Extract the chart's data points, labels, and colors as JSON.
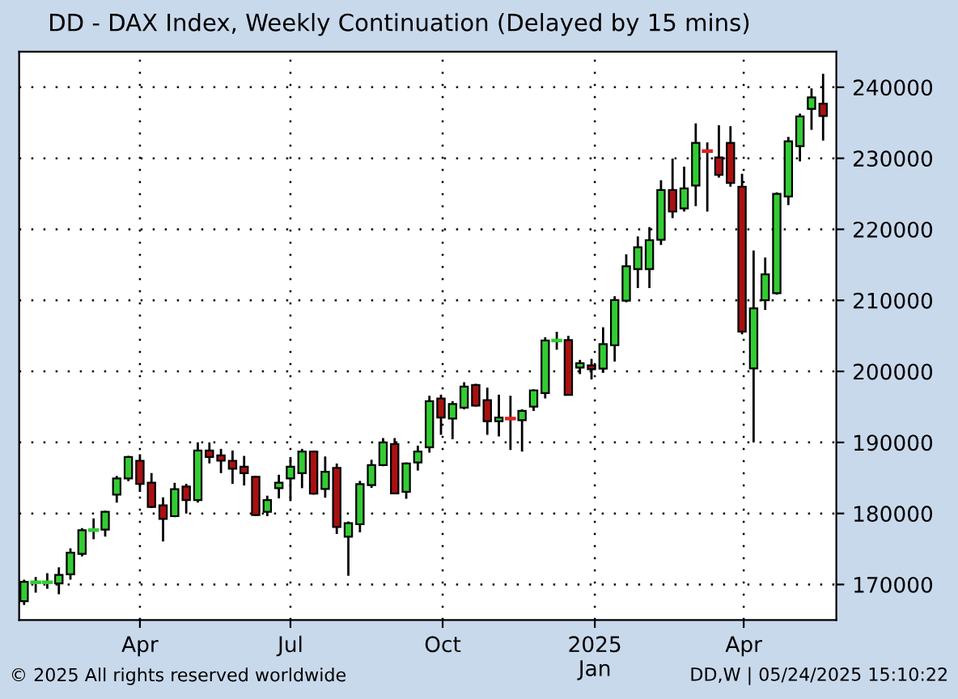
{
  "chart_data": {
    "type": "candlestick",
    "title": "DD - DAX Index, Weekly Continuation (Delayed by 15 mins)",
    "x": [
      "2024-01-22",
      "2024-01-29",
      "2024-02-05",
      "2024-02-12",
      "2024-02-19",
      "2024-02-26",
      "2024-03-04",
      "2024-03-11",
      "2024-03-18",
      "2024-03-25",
      "2024-04-01",
      "2024-04-08",
      "2024-04-15",
      "2024-04-22",
      "2024-04-29",
      "2024-05-06",
      "2024-05-13",
      "2024-05-20",
      "2024-05-27",
      "2024-06-03",
      "2024-06-10",
      "2024-06-17",
      "2024-06-24",
      "2024-07-01",
      "2024-07-08",
      "2024-07-15",
      "2024-07-22",
      "2024-07-29",
      "2024-08-05",
      "2024-08-12",
      "2024-08-19",
      "2024-08-26",
      "2024-09-02",
      "2024-09-09",
      "2024-09-16",
      "2024-09-23",
      "2024-09-30",
      "2024-10-07",
      "2024-10-14",
      "2024-10-21",
      "2024-10-28",
      "2024-11-04",
      "2024-11-11",
      "2024-11-18",
      "2024-11-25",
      "2024-12-02",
      "2024-12-09",
      "2024-12-16",
      "2024-12-23",
      "2024-12-30",
      "2025-01-06",
      "2025-01-13",
      "2025-01-20",
      "2025-01-27",
      "2025-02-03",
      "2025-02-10",
      "2025-02-17",
      "2025-02-24",
      "2025-03-03",
      "2025-03-10",
      "2025-03-17",
      "2025-03-24",
      "2025-03-31",
      "2025-04-07",
      "2025-04-14",
      "2025-04-21",
      "2025-04-28",
      "2025-05-05",
      "2025-05-12",
      "2025-05-19"
    ],
    "ohlc": [
      [
        167650,
        170680,
        167120,
        170380
      ],
      [
        170300,
        171060,
        168860,
        170300
      ],
      [
        170300,
        171590,
        169400,
        170300
      ],
      [
        170150,
        172420,
        168640,
        171360
      ],
      [
        171440,
        175080,
        170680,
        174470
      ],
      [
        174320,
        177950,
        173940,
        177650
      ],
      [
        177650,
        179320,
        176360,
        177650
      ],
      [
        177730,
        180380,
        176740,
        180230
      ],
      [
        182650,
        185300,
        181520,
        184920
      ],
      [
        184920,
        188100,
        184550,
        187950
      ],
      [
        187420,
        188330,
        183030,
        184170
      ],
      [
        184320,
        185680,
        180760,
        180910
      ],
      [
        181140,
        182270,
        176060,
        179240
      ],
      [
        179620,
        184320,
        179470,
        183410
      ],
      [
        183790,
        184170,
        180000,
        181890
      ],
      [
        181890,
        190000,
        181520,
        188860
      ],
      [
        188860,
        190000,
        187050,
        187950
      ],
      [
        188180,
        189090,
        185680,
        187420
      ],
      [
        187420,
        188860,
        184170,
        186290
      ],
      [
        186590,
        188100,
        183940,
        185680
      ],
      [
        185150,
        185300,
        179620,
        179770
      ],
      [
        180230,
        182500,
        179620,
        181890
      ],
      [
        183560,
        185450,
        182120,
        184320
      ],
      [
        184920,
        187950,
        181740,
        186590
      ],
      [
        185680,
        189090,
        183560,
        188710
      ],
      [
        188710,
        188860,
        182650,
        182800
      ],
      [
        183440,
        188020,
        182220,
        185880
      ],
      [
        186420,
        187030,
        177110,
        178100
      ],
      [
        176730,
        178870,
        171230,
        178640
      ],
      [
        178480,
        184590,
        177340,
        184130
      ],
      [
        183980,
        187560,
        183600,
        186800
      ],
      [
        186800,
        190610,
        186650,
        190000
      ],
      [
        189780,
        190610,
        182830,
        182830
      ],
      [
        183060,
        187180,
        182070,
        187030
      ],
      [
        187180,
        189550,
        186040,
        188710
      ],
      [
        189320,
        196570,
        188560,
        195800
      ],
      [
        196190,
        196720,
        191070,
        193510
      ],
      [
        193360,
        195800,
        190460,
        195420
      ],
      [
        194890,
        198470,
        194660,
        197860
      ],
      [
        198090,
        198250,
        195040,
        195190
      ],
      [
        195960,
        197710,
        191070,
        192980
      ],
      [
        192980,
        196720,
        190840,
        193510
      ],
      [
        193360,
        196570,
        188940,
        193360
      ],
      [
        193130,
        194660,
        188710,
        194430
      ],
      [
        195040,
        197480,
        194430,
        197330
      ],
      [
        196950,
        204810,
        196190,
        204350
      ],
      [
        204350,
        205570,
        203050,
        204350
      ],
      [
        204400,
        205000,
        196600,
        196700
      ],
      [
        200540,
        201620,
        199620,
        201150
      ],
      [
        200850,
        201770,
        198860,
        200310
      ],
      [
        200390,
        206210,
        199800,
        203830
      ],
      [
        203680,
        210580,
        201390,
        210040
      ],
      [
        209960,
        216480,
        209730,
        214790
      ],
      [
        214410,
        219000,
        211730,
        217470
      ],
      [
        214410,
        220310,
        211730,
        218470
      ],
      [
        218540,
        226910,
        217800,
        225540
      ],
      [
        225540,
        229950,
        221580,
        222500
      ],
      [
        222950,
        228810,
        222500,
        225770
      ],
      [
        226150,
        234900,
        223260,
        232160
      ],
      [
        231020,
        232240,
        222500,
        231020
      ],
      [
        230110,
        234670,
        227290,
        227670
      ],
      [
        232160,
        234520,
        226000,
        226530
      ],
      [
        226000,
        227820,
        205220,
        205600
      ],
      [
        200430,
        217020,
        190000,
        208870
      ],
      [
        210020,
        216030,
        208650,
        213670
      ],
      [
        211000,
        225200,
        210800,
        225000
      ],
      [
        224630,
        233000,
        223410,
        232390
      ],
      [
        231710,
        236270,
        229570,
        235890
      ],
      [
        236960,
        239850,
        233990,
        238560
      ],
      [
        237700,
        241900,
        232500,
        235950
      ]
    ],
    "colors": [
      "#33cc33",
      "#33cc33",
      "#33cc33",
      "#33cc33",
      "#33cc33",
      "#33cc33",
      "#33cc33",
      "#33cc33",
      "#33cc33",
      "#33cc33",
      "#aa1111",
      "#aa1111",
      "#aa1111",
      "#33cc33",
      "#aa1111",
      "#33cc33",
      "#aa1111",
      "#aa1111",
      "#aa1111",
      "#aa1111",
      "#aa1111",
      "#33cc33",
      "#33cc33",
      "#33cc33",
      "#33cc33",
      "#aa1111",
      "#33cc33",
      "#aa1111",
      "#33cc33",
      "#33cc33",
      "#33cc33",
      "#33cc33",
      "#aa1111",
      "#33cc33",
      "#33cc33",
      "#33cc33",
      "#aa1111",
      "#33cc33",
      "#33cc33",
      "#aa1111",
      "#aa1111",
      "#33cc33",
      "#dd2222",
      "#33cc33",
      "#33cc33",
      "#33cc33",
      "#33cc33",
      "#aa1111",
      "#33cc33",
      "#aa1111",
      "#33cc33",
      "#33cc33",
      "#33cc33",
      "#33cc33",
      "#33cc33",
      "#33cc33",
      "#aa1111",
      "#33cc33",
      "#33cc33",
      "#dd2222",
      "#aa1111",
      "#aa1111",
      "#aa1111",
      "#33cc33",
      "#33cc33",
      "#33cc33",
      "#33cc33",
      "#33cc33",
      "#33cc33",
      "#aa1111"
    ],
    "xlim": [
      "2024-01-19",
      "2025-05-27"
    ],
    "xticks": [
      {
        "value": "2024-04-01",
        "label": "Apr"
      },
      {
        "value": "2024-07-01",
        "label": "Jul"
      },
      {
        "value": "2024-10-01",
        "label": "Oct"
      },
      {
        "value": "2025-01-01",
        "label": "2025\nJan"
      },
      {
        "value": "2025-04-01",
        "label": "Apr"
      }
    ],
    "ylim": [
      165000,
      245000
    ],
    "yticks": [
      170000,
      180000,
      190000,
      200000,
      210000,
      220000,
      230000,
      240000
    ],
    "grid": true,
    "annotations": [
      "© 2025 All rights reserved worldwide",
      "DD,W | 05/24/2025 15:10:22"
    ]
  }
}
